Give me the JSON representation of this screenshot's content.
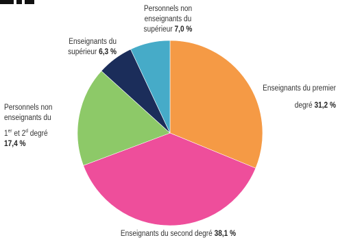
{
  "chart_data": {
    "type": "pie",
    "title": "",
    "slices": [
      {
        "key": "premier",
        "name": "Enseignants du premier degré",
        "value": 31.2,
        "value_label": "31,2 %",
        "color": "#F59A45"
      },
      {
        "key": "second",
        "name": "Enseignants du second degré",
        "value": 38.1,
        "value_label": "38,1 %",
        "color": "#EE4E9B"
      },
      {
        "key": "pnonens12",
        "name": "Personnels non enseignants du 1er et 2d degré",
        "value": 17.4,
        "value_label": "17,4 %",
        "color": "#8DC968"
      },
      {
        "key": "sup",
        "name": "Enseignants du supérieur",
        "value": 6.3,
        "value_label": "6,3 %",
        "color": "#1B2D5A"
      },
      {
        "key": "pnonenssup",
        "name": "Personnels non enseignants du supérieur",
        "value": 7.0,
        "value_label": "7,0 %",
        "color": "#46ABC8"
      }
    ],
    "labels": {
      "premier": {
        "line1": "Enseignants du premier",
        "line2": "degré"
      },
      "second": {
        "line1": "Enseignants du second degré"
      },
      "pnonens12": {
        "line1": "Personnels non",
        "line2": "enseignants du",
        "line3_a": "1",
        "line3_sup1": "er",
        "line3_b": " et 2",
        "line3_sup2": "d",
        "line3_c": "  degré"
      },
      "sup": {
        "line1": "Enseignants du",
        "line2": "supérieur"
      },
      "pnonenssup": {
        "line1": "Personnels non",
        "line2": "enseignants du",
        "line3": "supérieur"
      }
    },
    "start_angle_deg": 0,
    "direction": "clockwise"
  }
}
